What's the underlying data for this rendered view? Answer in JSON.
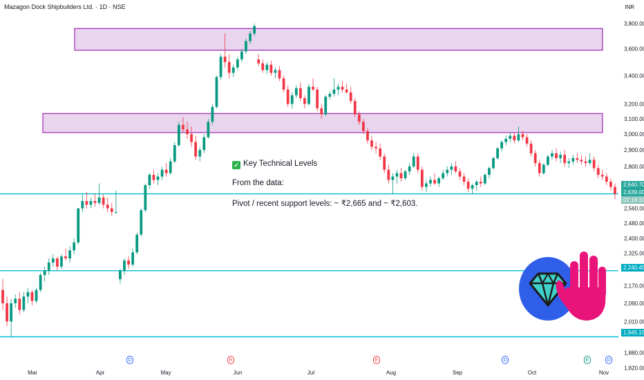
{
  "header": {
    "title": "Mazagon Dock Shipbuilders Ltd. · 1D · NSE",
    "currency": "INR"
  },
  "annotation": {
    "heading": "Key Technical Levels",
    "line1": "From the data:",
    "line2": "Pivot / recent support levels: ~ ₹2,665 and ~ ₹2,603."
  },
  "colors": {
    "up": "#089981",
    "down": "#f23645",
    "zone_fill": "#e9d5ee",
    "zone_stroke": "#9c27b0",
    "level_line": "#00bcd4",
    "price_badge": "#26a69a",
    "timer_badge": "#8bc6bd"
  },
  "badges": {
    "last_price": "2,640.70",
    "last_close": "2,639.00",
    "countdown": "02:18:10",
    "level_mid": "2,240.45",
    "level_low": "1,945.15"
  },
  "events": [
    {
      "label": "D",
      "color": "#2962ff"
    },
    {
      "label": "E",
      "color": "#f23645"
    },
    {
      "label": "E",
      "color": "#f23645"
    },
    {
      "label": "D",
      "color": "#2962ff"
    },
    {
      "label": "E",
      "color": "#089981"
    },
    {
      "label": "D",
      "color": "#2962ff"
    }
  ],
  "decoration": {
    "diamond_icon": "gem-icon",
    "hand_icon": "raised-hand-icon"
  },
  "chart_data": {
    "type": "candlestick",
    "title": "Mazagon Dock Shipbuilders Ltd. · 1D · NSE",
    "y_scale": "log",
    "ylim": [
      1800,
      3880
    ],
    "y_ticks": [
      "3,800.00",
      "3,600.00",
      "3,400.00",
      "3,200.00",
      "3,100.00",
      "3,000.00",
      "2,900.00",
      "2,800.00",
      "2,560.00",
      "2,480.00",
      "2,400.00",
      "2,325.00",
      "2,170.00",
      "2,090.00",
      "2,010.00",
      "1,880.00",
      "1,820.00"
    ],
    "x_labels": [
      "Mar",
      "Apr",
      "May",
      "Jun",
      "Jul",
      "Aug",
      "Sep",
      "Oct",
      "Nov"
    ],
    "resistance_zones": [
      {
        "low": 3590,
        "high": 3760
      },
      {
        "low": 3010,
        "high": 3135
      }
    ],
    "horizontal_levels": [
      2640.7,
      2240.45,
      1945.15
    ],
    "last_price": 2640.7,
    "candles": [
      {
        "o": 2150,
        "h": 2200,
        "l": 2060,
        "c": 2090
      },
      {
        "o": 2090,
        "h": 2120,
        "l": 1990,
        "c": 2010
      },
      {
        "o": 2010,
        "h": 2110,
        "l": 1945,
        "c": 2090
      },
      {
        "o": 2090,
        "h": 2130,
        "l": 2070,
        "c": 2110
      },
      {
        "o": 2110,
        "h": 2140,
        "l": 2040,
        "c": 2060
      },
      {
        "o": 2060,
        "h": 2140,
        "l": 2050,
        "c": 2120
      },
      {
        "o": 2120,
        "h": 2160,
        "l": 2090,
        "c": 2140
      },
      {
        "o": 2140,
        "h": 2150,
        "l": 2080,
        "c": 2100
      },
      {
        "o": 2100,
        "h": 2160,
        "l": 2090,
        "c": 2150
      },
      {
        "o": 2150,
        "h": 2230,
        "l": 2140,
        "c": 2220
      },
      {
        "o": 2220,
        "h": 2260,
        "l": 2190,
        "c": 2240
      },
      {
        "o": 2240,
        "h": 2300,
        "l": 2220,
        "c": 2280
      },
      {
        "o": 2280,
        "h": 2320,
        "l": 2260,
        "c": 2300
      },
      {
        "o": 2300,
        "h": 2310,
        "l": 2240,
        "c": 2260
      },
      {
        "o": 2260,
        "h": 2320,
        "l": 2250,
        "c": 2310
      },
      {
        "o": 2310,
        "h": 2350,
        "l": 2290,
        "c": 2300
      },
      {
        "o": 2300,
        "h": 2360,
        "l": 2280,
        "c": 2340
      },
      {
        "o": 2340,
        "h": 2400,
        "l": 2320,
        "c": 2380
      },
      {
        "o": 2380,
        "h": 2560,
        "l": 2370,
        "c": 2560
      },
      {
        "o": 2560,
        "h": 2640,
        "l": 2540,
        "c": 2600
      },
      {
        "o": 2600,
        "h": 2650,
        "l": 2560,
        "c": 2580
      },
      {
        "o": 2580,
        "h": 2620,
        "l": 2560,
        "c": 2600
      },
      {
        "o": 2600,
        "h": 2640,
        "l": 2570,
        "c": 2590
      },
      {
        "o": 2590,
        "h": 2700,
        "l": 2580,
        "c": 2620
      },
      {
        "o": 2620,
        "h": 2640,
        "l": 2560,
        "c": 2580
      },
      {
        "o": 2580,
        "h": 2620,
        "l": 2540,
        "c": 2560
      },
      {
        "o": 2560,
        "h": 2590,
        "l": 2520,
        "c": 2540
      },
      {
        "o": 2540,
        "h": 2660,
        "l": 2530,
        "c": 2540
      },
      {
        "o": 2200,
        "h": 2250,
        "l": 2180,
        "c": 2240
      },
      {
        "o": 2240,
        "h": 2300,
        "l": 2220,
        "c": 2290
      },
      {
        "o": 2290,
        "h": 2310,
        "l": 2250,
        "c": 2270
      },
      {
        "o": 2270,
        "h": 2350,
        "l": 2260,
        "c": 2330
      },
      {
        "o": 2330,
        "h": 2430,
        "l": 2320,
        "c": 2420
      },
      {
        "o": 2420,
        "h": 2560,
        "l": 2410,
        "c": 2550
      },
      {
        "o": 2550,
        "h": 2700,
        "l": 2540,
        "c": 2690
      },
      {
        "o": 2690,
        "h": 2760,
        "l": 2670,
        "c": 2750
      },
      {
        "o": 2750,
        "h": 2780,
        "l": 2700,
        "c": 2720
      },
      {
        "o": 2720,
        "h": 2760,
        "l": 2690,
        "c": 2740
      },
      {
        "o": 2740,
        "h": 2800,
        "l": 2720,
        "c": 2780
      },
      {
        "o": 2780,
        "h": 2820,
        "l": 2740,
        "c": 2760
      },
      {
        "o": 2760,
        "h": 2850,
        "l": 2750,
        "c": 2830
      },
      {
        "o": 2830,
        "h": 2950,
        "l": 2820,
        "c": 2930
      },
      {
        "o": 2930,
        "h": 3080,
        "l": 2920,
        "c": 3060
      },
      {
        "o": 3060,
        "h": 3110,
        "l": 3010,
        "c": 3030
      },
      {
        "o": 3030,
        "h": 3080,
        "l": 2970,
        "c": 3000
      },
      {
        "o": 3000,
        "h": 3050,
        "l": 2920,
        "c": 2950
      },
      {
        "o": 2950,
        "h": 2990,
        "l": 2840,
        "c": 2860
      },
      {
        "o": 2860,
        "h": 2920,
        "l": 2830,
        "c": 2900
      },
      {
        "o": 2900,
        "h": 3000,
        "l": 2880,
        "c": 2980
      },
      {
        "o": 2980,
        "h": 3100,
        "l": 2970,
        "c": 3080
      },
      {
        "o": 3080,
        "h": 3200,
        "l": 3060,
        "c": 3180
      },
      {
        "o": 3180,
        "h": 3400,
        "l": 3170,
        "c": 3390
      },
      {
        "o": 3390,
        "h": 3560,
        "l": 3370,
        "c": 3540
      },
      {
        "o": 3540,
        "h": 3720,
        "l": 3460,
        "c": 3500
      },
      {
        "o": 3500,
        "h": 3560,
        "l": 3380,
        "c": 3420
      },
      {
        "o": 3420,
        "h": 3480,
        "l": 3390,
        "c": 3460
      },
      {
        "o": 3460,
        "h": 3540,
        "l": 3440,
        "c": 3520
      },
      {
        "o": 3520,
        "h": 3600,
        "l": 3500,
        "c": 3580
      },
      {
        "o": 3580,
        "h": 3680,
        "l": 3560,
        "c": 3660
      },
      {
        "o": 3660,
        "h": 3740,
        "l": 3640,
        "c": 3720
      },
      {
        "o": 3720,
        "h": 3800,
        "l": 3700,
        "c": 3780
      },
      {
        "o": 3520,
        "h": 3560,
        "l": 3470,
        "c": 3490
      },
      {
        "o": 3490,
        "h": 3520,
        "l": 3420,
        "c": 3440
      },
      {
        "o": 3440,
        "h": 3500,
        "l": 3410,
        "c": 3480
      },
      {
        "o": 3480,
        "h": 3510,
        "l": 3400,
        "c": 3420
      },
      {
        "o": 3420,
        "h": 3460,
        "l": 3380,
        "c": 3440
      },
      {
        "o": 3440,
        "h": 3470,
        "l": 3360,
        "c": 3380
      },
      {
        "o": 3380,
        "h": 3400,
        "l": 3280,
        "c": 3300
      },
      {
        "o": 3300,
        "h": 3330,
        "l": 3180,
        "c": 3200
      },
      {
        "o": 3200,
        "h": 3280,
        "l": 3170,
        "c": 3260
      },
      {
        "o": 3260,
        "h": 3330,
        "l": 3240,
        "c": 3310
      },
      {
        "o": 3310,
        "h": 3350,
        "l": 3220,
        "c": 3240
      },
      {
        "o": 3240,
        "h": 3260,
        "l": 3170,
        "c": 3200
      },
      {
        "o": 3200,
        "h": 3340,
        "l": 3190,
        "c": 3320
      },
      {
        "o": 3320,
        "h": 3380,
        "l": 3290,
        "c": 3300
      },
      {
        "o": 3300,
        "h": 3320,
        "l": 3150,
        "c": 3170
      },
      {
        "o": 3170,
        "h": 3200,
        "l": 3100,
        "c": 3130
      },
      {
        "o": 3130,
        "h": 3260,
        "l": 3120,
        "c": 3250
      },
      {
        "o": 3250,
        "h": 3290,
        "l": 3230,
        "c": 3270
      },
      {
        "o": 3270,
        "h": 3380,
        "l": 3250,
        "c": 3300
      },
      {
        "o": 3300,
        "h": 3340,
        "l": 3260,
        "c": 3320
      },
      {
        "o": 3320,
        "h": 3360,
        "l": 3280,
        "c": 3300
      },
      {
        "o": 3300,
        "h": 3340,
        "l": 3270,
        "c": 3280
      },
      {
        "o": 3280,
        "h": 3320,
        "l": 3200,
        "c": 3220
      },
      {
        "o": 3220,
        "h": 3240,
        "l": 3110,
        "c": 3130
      },
      {
        "o": 3130,
        "h": 3150,
        "l": 3060,
        "c": 3080
      },
      {
        "o": 3080,
        "h": 3100,
        "l": 3000,
        "c": 3020
      },
      {
        "o": 3020,
        "h": 3040,
        "l": 2940,
        "c": 2960
      },
      {
        "o": 2960,
        "h": 2990,
        "l": 2900,
        "c": 2920
      },
      {
        "o": 2920,
        "h": 2950,
        "l": 2880,
        "c": 2910
      },
      {
        "o": 2910,
        "h": 2940,
        "l": 2840,
        "c": 2860
      },
      {
        "o": 2860,
        "h": 2880,
        "l": 2760,
        "c": 2780
      },
      {
        "o": 2780,
        "h": 2810,
        "l": 2700,
        "c": 2720
      },
      {
        "o": 2720,
        "h": 2760,
        "l": 2640,
        "c": 2740
      },
      {
        "o": 2740,
        "h": 2780,
        "l": 2700,
        "c": 2760
      },
      {
        "o": 2760,
        "h": 2790,
        "l": 2710,
        "c": 2730
      },
      {
        "o": 2730,
        "h": 2780,
        "l": 2720,
        "c": 2770
      },
      {
        "o": 2770,
        "h": 2820,
        "l": 2750,
        "c": 2800
      },
      {
        "o": 2800,
        "h": 2880,
        "l": 2790,
        "c": 2860
      },
      {
        "o": 2860,
        "h": 2880,
        "l": 2760,
        "c": 2780
      },
      {
        "o": 2780,
        "h": 2800,
        "l": 2660,
        "c": 2680
      },
      {
        "o": 2680,
        "h": 2720,
        "l": 2650,
        "c": 2700
      },
      {
        "o": 2700,
        "h": 2740,
        "l": 2680,
        "c": 2720
      },
      {
        "o": 2720,
        "h": 2760,
        "l": 2690,
        "c": 2700
      },
      {
        "o": 2700,
        "h": 2740,
        "l": 2680,
        "c": 2730
      },
      {
        "o": 2730,
        "h": 2780,
        "l": 2720,
        "c": 2760
      },
      {
        "o": 2760,
        "h": 2800,
        "l": 2740,
        "c": 2780
      },
      {
        "o": 2780,
        "h": 2820,
        "l": 2750,
        "c": 2800
      },
      {
        "o": 2800,
        "h": 2830,
        "l": 2760,
        "c": 2770
      },
      {
        "o": 2770,
        "h": 2790,
        "l": 2720,
        "c": 2740
      },
      {
        "o": 2740,
        "h": 2760,
        "l": 2690,
        "c": 2710
      },
      {
        "o": 2710,
        "h": 2730,
        "l": 2650,
        "c": 2670
      },
      {
        "o": 2670,
        "h": 2700,
        "l": 2640,
        "c": 2690
      },
      {
        "o": 2690,
        "h": 2720,
        "l": 2660,
        "c": 2710
      },
      {
        "o": 2710,
        "h": 2740,
        "l": 2680,
        "c": 2700
      },
      {
        "o": 2700,
        "h": 2760,
        "l": 2690,
        "c": 2750
      },
      {
        "o": 2750,
        "h": 2800,
        "l": 2730,
        "c": 2790
      },
      {
        "o": 2790,
        "h": 2860,
        "l": 2780,
        "c": 2850
      },
      {
        "o": 2850,
        "h": 2920,
        "l": 2840,
        "c": 2910
      },
      {
        "o": 2910,
        "h": 2960,
        "l": 2890,
        "c": 2950
      },
      {
        "o": 2950,
        "h": 2990,
        "l": 2930,
        "c": 2970
      },
      {
        "o": 2970,
        "h": 3010,
        "l": 2950,
        "c": 2990
      },
      {
        "o": 2990,
        "h": 3010,
        "l": 2940,
        "c": 2960
      },
      {
        "o": 2960,
        "h": 3050,
        "l": 2950,
        "c": 3000
      },
      {
        "o": 3000,
        "h": 3020,
        "l": 2960,
        "c": 2980
      },
      {
        "o": 2980,
        "h": 3000,
        "l": 2920,
        "c": 2940
      },
      {
        "o": 2940,
        "h": 2960,
        "l": 2860,
        "c": 2880
      },
      {
        "o": 2880,
        "h": 2900,
        "l": 2800,
        "c": 2820
      },
      {
        "o": 2820,
        "h": 2840,
        "l": 2740,
        "c": 2760
      },
      {
        "o": 2760,
        "h": 2820,
        "l": 2750,
        "c": 2810
      },
      {
        "o": 2810,
        "h": 2870,
        "l": 2800,
        "c": 2860
      },
      {
        "o": 2860,
        "h": 2900,
        "l": 2840,
        "c": 2880
      },
      {
        "o": 2880,
        "h": 2910,
        "l": 2830,
        "c": 2850
      },
      {
        "o": 2850,
        "h": 2890,
        "l": 2820,
        "c": 2870
      },
      {
        "o": 2870,
        "h": 2900,
        "l": 2800,
        "c": 2820
      },
      {
        "o": 2820,
        "h": 2850,
        "l": 2790,
        "c": 2830
      },
      {
        "o": 2830,
        "h": 2870,
        "l": 2810,
        "c": 2850
      },
      {
        "o": 2850,
        "h": 2880,
        "l": 2820,
        "c": 2840
      },
      {
        "o": 2840,
        "h": 2870,
        "l": 2810,
        "c": 2830
      },
      {
        "o": 2830,
        "h": 2860,
        "l": 2800,
        "c": 2820
      },
      {
        "o": 2820,
        "h": 2880,
        "l": 2810,
        "c": 2840
      },
      {
        "o": 2840,
        "h": 2860,
        "l": 2770,
        "c": 2790
      },
      {
        "o": 2790,
        "h": 2810,
        "l": 2730,
        "c": 2750
      },
      {
        "o": 2750,
        "h": 2780,
        "l": 2720,
        "c": 2740
      },
      {
        "o": 2740,
        "h": 2760,
        "l": 2690,
        "c": 2710
      },
      {
        "o": 2710,
        "h": 2730,
        "l": 2660,
        "c": 2680
      },
      {
        "o": 2680,
        "h": 2700,
        "l": 2610,
        "c": 2640
      }
    ]
  }
}
